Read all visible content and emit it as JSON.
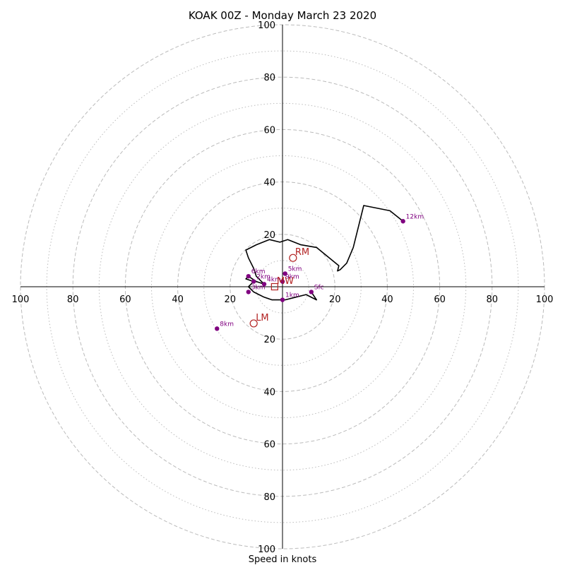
{
  "chart_data": {
    "type": "line",
    "title": "KOAK 00Z - Monday March 23 2020",
    "xlabel": "Speed in knots",
    "ylabel": "",
    "xlim": [
      -100,
      100
    ],
    "ylim": [
      -100,
      100
    ],
    "rings": {
      "major": [
        20,
        40,
        60,
        80,
        100
      ],
      "minor": [
        10,
        30,
        50,
        70,
        90
      ],
      "major_style": "dashed",
      "minor_style": "dotted",
      "color": "#bbbbbb"
    },
    "tick_labels": [
      "100",
      "80",
      "60",
      "40",
      "20",
      "20",
      "40",
      "60",
      "80",
      "100"
    ],
    "tick_values": [
      -100,
      -80,
      -60,
      -40,
      -20,
      20,
      40,
      60,
      80,
      100
    ],
    "y_tick_labels": [
      "100",
      "80",
      "60",
      "40",
      "20",
      "20",
      "40",
      "60",
      "80",
      "100"
    ],
    "y_tick_values": [
      100,
      80,
      60,
      40,
      20,
      -20,
      -40,
      -60,
      -80,
      -100
    ],
    "line_color": "#000000",
    "height_marker_color": "#800080",
    "motion_color": "#b22222",
    "series": [
      {
        "u": [
          11,
          13,
          9,
          5,
          1,
          0,
          -4,
          -7,
          -9,
          -11,
          -13,
          -12,
          -11,
          -14,
          -13,
          -10,
          -7,
          -10,
          -11,
          -13,
          -14,
          -10,
          -5,
          -1,
          2,
          7,
          13,
          21.5,
          21,
          22,
          24.5,
          27,
          31,
          41,
          46
        ],
        "v": [
          -2,
          -5,
          -3,
          -4,
          -5,
          -5,
          -5,
          -4,
          -3,
          -2,
          0,
          1,
          2,
          3,
          4,
          2,
          1,
          4,
          7,
          11,
          14,
          16,
          18,
          17,
          18,
          16,
          15,
          8,
          6,
          6.5,
          9,
          15,
          31,
          29,
          25
        ]
      }
    ],
    "height_markers": [
      {
        "label": "Sfc",
        "u": 11,
        "v": -2
      },
      {
        "label": "1km",
        "u": 0,
        "v": -5
      },
      {
        "label": "2km",
        "u": -11,
        "v": 2
      },
      {
        "label": "3km",
        "u": -13,
        "v": -2
      },
      {
        "label": "4km",
        "u": -7,
        "v": 1
      },
      {
        "label": "5km",
        "u": 1,
        "v": 5
      },
      {
        "label": "6km",
        "u": -13,
        "v": 4
      },
      {
        "label": "8km",
        "u": -25,
        "v": -16
      },
      {
        "label": "9km",
        "u": 0,
        "v": 2
      },
      {
        "label": "12km",
        "u": 46,
        "v": 25
      }
    ],
    "storm_motion": [
      {
        "label": "RM",
        "u": 4,
        "v": 11,
        "shape": "circle"
      },
      {
        "label": "LM",
        "u": -11,
        "v": -14,
        "shape": "circle"
      },
      {
        "label": "MW",
        "u": -3,
        "v": 0,
        "shape": "square"
      }
    ]
  }
}
